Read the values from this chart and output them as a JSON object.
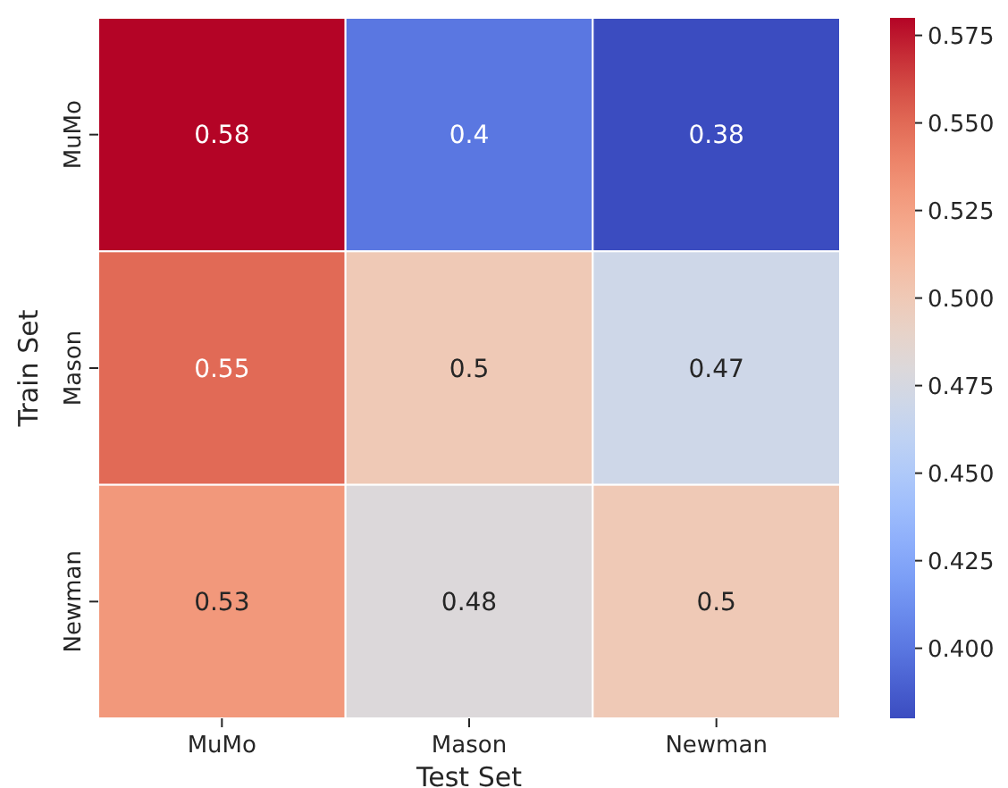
{
  "chart_data": {
    "type": "heatmap",
    "xlabel": "Test Set",
    "ylabel": "Train Set",
    "categories": [
      "MuMo",
      "Mason",
      "Newman"
    ],
    "y_categories": [
      "MuMo",
      "Mason",
      "Newman"
    ],
    "cells": [
      [
        0.58,
        0.4,
        0.38
      ],
      [
        0.55,
        0.5,
        0.47
      ],
      [
        0.53,
        0.48,
        0.5
      ]
    ],
    "clim": [
      0.38,
      0.58
    ],
    "cticks": [
      {
        "value": 0.4,
        "label": "0.400"
      },
      {
        "value": 0.425,
        "label": "0.425"
      },
      {
        "value": 0.45,
        "label": "0.450"
      },
      {
        "value": 0.475,
        "label": "0.475"
      },
      {
        "value": 0.5,
        "label": "0.500"
      },
      {
        "value": 0.525,
        "label": "0.525"
      },
      {
        "value": 0.55,
        "label": "0.550"
      },
      {
        "value": 0.575,
        "label": "0.575"
      }
    ],
    "data_labels": true
  }
}
